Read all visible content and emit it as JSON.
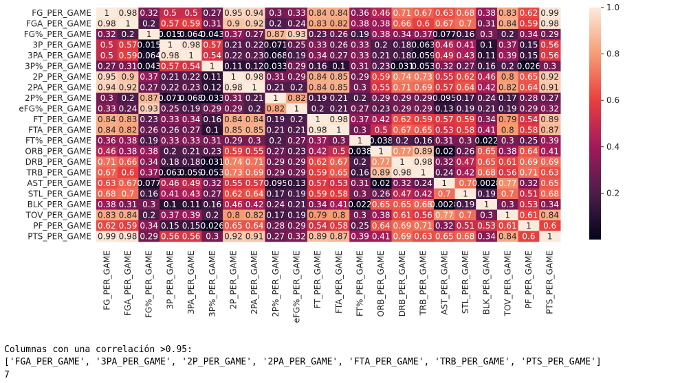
{
  "chart_data": {
    "type": "heatmap",
    "x": [
      "FG_PER_GAME",
      "FGA_PER_GAME",
      "FG%_PER_GAME",
      "3P_PER_GAME",
      "3PA_PER_GAME",
      "3P%_PER_GAME",
      "2P_PER_GAME",
      "2PA_PER_GAME",
      "2P%_PER_GAME",
      "eFG%_PER_GAME",
      "FT_PER_GAME",
      "FTA_PER_GAME",
      "FT%_PER_GAME",
      "ORB_PER_GAME",
      "DRB_PER_GAME",
      "TRB_PER_GAME",
      "AST_PER_GAME",
      "STL_PER_GAME",
      "BLK_PER_GAME",
      "TOV_PER_GAME",
      "PF_PER_GAME",
      "PTS_PER_GAME"
    ],
    "y": [
      "FG_PER_GAME",
      "FGA_PER_GAME",
      "FG%_PER_GAME",
      "3P_PER_GAME",
      "3PA_PER_GAME",
      "3P%_PER_GAME",
      "2P_PER_GAME",
      "2PA_PER_GAME",
      "2P%_PER_GAME",
      "eFG%_PER_GAME",
      "FT_PER_GAME",
      "FTA_PER_GAME",
      "FT%_PER_GAME",
      "ORB_PER_GAME",
      "DRB_PER_GAME",
      "TRB_PER_GAME",
      "AST_PER_GAME",
      "STL_PER_GAME",
      "BLK_PER_GAME",
      "TOV_PER_GAME",
      "PF_PER_GAME",
      "PTS_PER_GAME"
    ],
    "values": [
      [
        1,
        0.98,
        0.32,
        0.5,
        0.5,
        0.27,
        0.95,
        0.94,
        0.3,
        0.33,
        0.84,
        0.84,
        0.36,
        0.46,
        0.71,
        0.67,
        0.63,
        0.68,
        0.38,
        0.83,
        0.62,
        0.99
      ],
      [
        0.98,
        1,
        0.2,
        0.57,
        0.59,
        0.31,
        0.9,
        0.92,
        0.2,
        0.24,
        0.83,
        0.82,
        0.38,
        0.38,
        0.66,
        0.6,
        0.67,
        0.7,
        0.31,
        0.84,
        0.59,
        0.98
      ],
      [
        0.32,
        0.2,
        1,
        0.015,
        0.064,
        0.043,
        0.37,
        0.27,
        0.87,
        0.93,
        0.23,
        0.26,
        0.19,
        0.38,
        0.34,
        0.37,
        0.077,
        0.16,
        0.3,
        0.2,
        0.34,
        0.29
      ],
      [
        0.5,
        0.57,
        0.015,
        1,
        0.98,
        0.57,
        0.21,
        0.22,
        0.071,
        0.25,
        0.33,
        0.26,
        0.33,
        0.2,
        0.18,
        0.063,
        0.46,
        0.41,
        0.1,
        0.37,
        0.15,
        0.56
      ],
      [
        0.5,
        0.59,
        0.064,
        0.98,
        1,
        0.54,
        0.22,
        0.23,
        0.068,
        0.19,
        0.34,
        0.27,
        0.33,
        0.21,
        0.18,
        0.059,
        0.49,
        0.43,
        0.11,
        0.39,
        0.15,
        0.56
      ],
      [
        0.27,
        0.31,
        0.043,
        0.57,
        0.54,
        1,
        0.11,
        0.12,
        0.033,
        0.29,
        0.16,
        0.1,
        0.31,
        0.23,
        0.031,
        0.053,
        0.32,
        0.27,
        0.16,
        0.2,
        0.026,
        0.3
      ],
      [
        0.95,
        0.9,
        0.37,
        0.21,
        0.22,
        0.11,
        1,
        0.98,
        0.31,
        0.29,
        0.84,
        0.85,
        0.29,
        0.59,
        0.74,
        0.73,
        0.55,
        0.62,
        0.46,
        0.8,
        0.65,
        0.92
      ],
      [
        0.94,
        0.92,
        0.27,
        0.22,
        0.23,
        0.12,
        0.98,
        1,
        0.21,
        0.2,
        0.84,
        0.85,
        0.3,
        0.55,
        0.71,
        0.69,
        0.57,
        0.64,
        0.42,
        0.82,
        0.64,
        0.91
      ],
      [
        0.3,
        0.2,
        0.87,
        0.071,
        0.068,
        0.033,
        0.31,
        0.21,
        1,
        0.82,
        0.19,
        0.21,
        0.2,
        0.29,
        0.29,
        0.29,
        0.095,
        0.17,
        0.24,
        0.17,
        0.28,
        0.27
      ],
      [
        0.33,
        0.24,
        0.93,
        0.25,
        0.19,
        0.29,
        0.29,
        0.2,
        0.82,
        1,
        0.2,
        0.21,
        0.27,
        0.23,
        0.29,
        0.29,
        0.13,
        0.19,
        0.21,
        0.19,
        0.29,
        0.32
      ],
      [
        0.84,
        0.83,
        0.23,
        0.33,
        0.34,
        0.16,
        0.84,
        0.84,
        0.19,
        0.2,
        1,
        0.98,
        0.37,
        0.42,
        0.62,
        0.59,
        0.57,
        0.59,
        0.34,
        0.79,
        0.54,
        0.89
      ],
      [
        0.84,
        0.82,
        0.26,
        0.26,
        0.27,
        0.1,
        0.85,
        0.85,
        0.21,
        0.21,
        0.98,
        1,
        0.3,
        0.5,
        0.67,
        0.65,
        0.53,
        0.58,
        0.41,
        0.8,
        0.58,
        0.87
      ],
      [
        0.36,
        0.38,
        0.19,
        0.33,
        0.33,
        0.31,
        0.29,
        0.3,
        0.2,
        0.27,
        0.37,
        0.3,
        1,
        0.038,
        0.2,
        0.16,
        0.31,
        0.3,
        0.022,
        0.3,
        0.25,
        0.39
      ],
      [
        0.46,
        0.38,
        0.38,
        0.2,
        0.21,
        0.23,
        0.59,
        0.55,
        0.27,
        0.23,
        0.42,
        0.5,
        0.038,
        1,
        0.77,
        0.89,
        0.02,
        0.26,
        0.65,
        0.38,
        0.64,
        0.41
      ],
      [
        0.71,
        0.66,
        0.34,
        0.18,
        0.18,
        0.031,
        0.74,
        0.71,
        0.29,
        0.29,
        0.62,
        0.67,
        0.2,
        0.77,
        1,
        0.98,
        0.32,
        0.47,
        0.65,
        0.61,
        0.69,
        0.69
      ],
      [
        0.67,
        0.6,
        0.37,
        0.063,
        0.059,
        0.053,
        0.73,
        0.69,
        0.29,
        0.29,
        0.59,
        0.65,
        0.16,
        0.89,
        0.98,
        1,
        0.24,
        0.42,
        0.68,
        0.56,
        0.71,
        0.63
      ],
      [
        0.63,
        0.67,
        0.077,
        0.46,
        0.49,
        0.32,
        0.55,
        0.57,
        0.095,
        0.13,
        0.57,
        0.53,
        0.31,
        0.02,
        0.32,
        0.24,
        1,
        0.7,
        0.0028,
        0.77,
        0.32,
        0.65
      ],
      [
        0.68,
        0.7,
        0.16,
        0.41,
        0.43,
        0.27,
        0.62,
        0.64,
        0.17,
        0.19,
        0.59,
        0.58,
        0.3,
        0.26,
        0.47,
        0.42,
        0.7,
        1,
        0.19,
        0.7,
        0.51,
        0.68
      ],
      [
        0.38,
        0.31,
        0.3,
        0.1,
        0.11,
        0.16,
        0.46,
        0.42,
        0.24,
        0.21,
        0.34,
        0.41,
        0.022,
        0.65,
        0.65,
        0.68,
        0.0028,
        0.19,
        1,
        0.3,
        0.53,
        0.34
      ],
      [
        0.83,
        0.84,
        0.2,
        0.37,
        0.39,
        0.2,
        0.8,
        0.82,
        0.17,
        0.19,
        0.79,
        0.8,
        0.3,
        0.38,
        0.61,
        0.56,
        0.77,
        0.7,
        0.3,
        1,
        0.61,
        0.84
      ],
      [
        0.62,
        0.59,
        0.34,
        0.15,
        0.15,
        0.026,
        0.65,
        0.64,
        0.28,
        0.29,
        0.54,
        0.58,
        0.25,
        0.64,
        0.69,
        0.71,
        0.32,
        0.51,
        0.53,
        0.61,
        1,
        0.6
      ],
      [
        0.99,
        0.98,
        0.29,
        0.56,
        0.56,
        0.3,
        0.92,
        0.91,
        0.27,
        0.32,
        0.89,
        0.87,
        0.39,
        0.41,
        0.69,
        0.63,
        0.65,
        0.68,
        0.34,
        0.84,
        0.6,
        1
      ]
    ],
    "clim": [
      0,
      1
    ],
    "cticks": [
      0.2,
      0.4,
      0.6,
      {
        "value": 1,
        "label": "1.0"
      },
      0.8
    ],
    "colorscale": [
      "#03051a",
      "#4c1d4b",
      "#a11a5b",
      "#e83f3f",
      "#f69c73",
      "#faebdd"
    ]
  },
  "output": [
    "Columnas con una correlación >0.95:",
    "['FGA_PER_GAME', '3PA_PER_GAME', '2P_PER_GAME', '2PA_PER_GAME', 'FTA_PER_GAME', 'TRB_PER_GAME', 'PTS_PER_GAME']",
    "7"
  ]
}
